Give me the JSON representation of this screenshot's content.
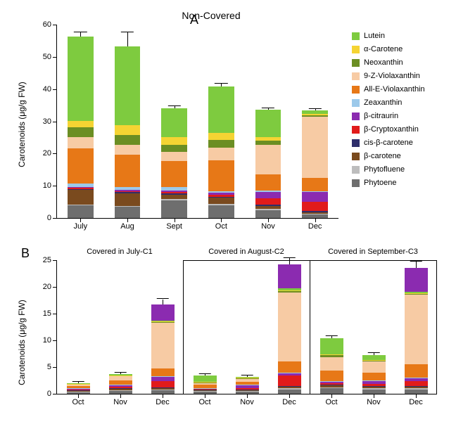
{
  "colors": {
    "Lutein": "#7ecb3f",
    "aCarotene": "#f5d433",
    "Neoxanthin": "#6b8e23",
    "9ZViolaxanthin": "#f7cba4",
    "AllEViolaxanthin": "#e77817",
    "Zeaxanthin": "#9cc9ea",
    "bCitraurin": "#8b2bb0",
    "bCryptoxanthin": "#e11b1b",
    "cisBetaCarotene": "#2e2e6b",
    "betaCarotene": "#7a4a1e",
    "Phytofluene": "#bdbdbd",
    "Phytoene": "#6e6e6e"
  },
  "legend": [
    {
      "key": "Lutein",
      "label": "Lutein"
    },
    {
      "key": "aCarotene",
      "label": "α-Carotene"
    },
    {
      "key": "Neoxanthin",
      "label": "Neoxanthin"
    },
    {
      "key": "9ZViolaxanthin",
      "label": "9-Z-Violaxanthin"
    },
    {
      "key": "AllEViolaxanthin",
      "label": "All-E-Violaxanthin"
    },
    {
      "key": "Zeaxanthin",
      "label": "Zeaxanthin"
    },
    {
      "key": "bCitraurin",
      "label": "β-citraurin"
    },
    {
      "key": "bCryptoxanthin",
      "label": "β-Cryptoxanthin"
    },
    {
      "key": "cisBetaCarotene",
      "label": "cis-β-carotene"
    },
    {
      "key": "betaCarotene",
      "label": "β-carotene"
    },
    {
      "key": "Phytofluene",
      "label": "Phytofluene"
    },
    {
      "key": "Phytoene",
      "label": "Phytoene"
    }
  ],
  "panelA": {
    "label": "A",
    "title": "Non-Covered",
    "ylabel": "Carotenoids (μg/g FW)",
    "ylim": [
      0,
      60
    ],
    "yticks": [
      0,
      10,
      20,
      30,
      40,
      50,
      60
    ],
    "categories": [
      "July",
      "Aug",
      "Sept",
      "Oct",
      "Nov",
      "Dec"
    ],
    "barWidth": 0.55,
    "stackOrder": [
      "Phytoene",
      "Phytofluene",
      "betaCarotene",
      "cisBetaCarotene",
      "bCryptoxanthin",
      "bCitraurin",
      "Zeaxanthin",
      "AllEViolaxanthin",
      "9ZViolaxanthin",
      "Neoxanthin",
      "aCarotene",
      "Lutein"
    ],
    "data": [
      {
        "Phytoene": 4,
        "Phytofluene": 0.2,
        "betaCarotene": 4.5,
        "cisBetaCarotene": 0.3,
        "bCryptoxanthin": 0.4,
        "bCitraurin": 0.3,
        "Zeaxanthin": 1,
        "AllEViolaxanthin": 11,
        "9ZViolaxanthin": 3.5,
        "Neoxanthin": 3,
        "aCarotene": 2,
        "Lutein": 26,
        "err": 1.5
      },
      {
        "Phytoene": 3.5,
        "Phytofluene": 0.2,
        "betaCarotene": 4,
        "cisBetaCarotene": 0.3,
        "bCryptoxanthin": 0.4,
        "bCitraurin": 0.3,
        "Zeaxanthin": 1,
        "AllEViolaxanthin": 10,
        "9ZViolaxanthin": 3,
        "Neoxanthin": 3,
        "aCarotene": 3,
        "Lutein": 24.5,
        "err": 4.5
      },
      {
        "Phytoene": 5.5,
        "Phytofluene": 0.3,
        "betaCarotene": 1.5,
        "cisBetaCarotene": 0.3,
        "bCryptoxanthin": 0.5,
        "bCitraurin": 0.5,
        "Zeaxanthin": 1,
        "AllEViolaxanthin": 8,
        "9ZViolaxanthin": 3,
        "Neoxanthin": 2,
        "aCarotene": 2.5,
        "Lutein": 9,
        "err": 0.6
      },
      {
        "Phytoene": 4,
        "Phytofluene": 0.3,
        "betaCarotene": 2,
        "cisBetaCarotene": 0.3,
        "bCryptoxanthin": 0.7,
        "bCitraurin": 0.5,
        "Zeaxanthin": 0.5,
        "AllEViolaxanthin": 9.5,
        "9ZViolaxanthin": 4,
        "Neoxanthin": 2.5,
        "aCarotene": 2,
        "Lutein": 14.5,
        "err": 0.8
      },
      {
        "Phytoene": 2.5,
        "Phytofluene": 0.3,
        "betaCarotene": 1,
        "cisBetaCarotene": 0.3,
        "bCryptoxanthin": 2,
        "bCitraurin": 2,
        "Zeaxanthin": 0.5,
        "AllEViolaxanthin": 5,
        "9ZViolaxanthin": 9,
        "Neoxanthin": 1.5,
        "aCarotene": 1,
        "Lutein": 8.5,
        "err": 0.5
      },
      {
        "Phytoene": 1,
        "Phytofluene": 0.3,
        "betaCarotene": 0.5,
        "cisBetaCarotene": 0.3,
        "bCryptoxanthin": 3,
        "bCitraurin": 3,
        "Zeaxanthin": 0.3,
        "AllEViolaxanthin": 4,
        "9ZViolaxanthin": 19,
        "Neoxanthin": 0.5,
        "aCarotene": 0.4,
        "Lutein": 1,
        "err": 0.6
      }
    ]
  },
  "panelB": {
    "label": "B",
    "ylabel": "Carotenoids (μg/g FW)",
    "subTitles": [
      "Covered in July-C1",
      "Covered in August-C2",
      "Covered in September-C3"
    ],
    "ylim": [
      0,
      25
    ],
    "yticks": [
      0,
      5,
      10,
      15,
      20,
      25
    ],
    "categories": [
      "Oct",
      "Nov",
      "Dec"
    ],
    "barWidth": 0.55,
    "stackOrder": [
      "Phytoene",
      "Phytofluene",
      "betaCarotene",
      "cisBetaCarotene",
      "bCryptoxanthin",
      "bCitraurin",
      "Zeaxanthin",
      "AllEViolaxanthin",
      "9ZViolaxanthin",
      "Neoxanthin",
      "aCarotene",
      "Lutein"
    ],
    "subplots": [
      [
        {
          "Phytoene": 0.3,
          "Phytofluene": 0.1,
          "betaCarotene": 0.2,
          "cisBetaCarotene": 0.05,
          "bCryptoxanthin": 0.1,
          "bCitraurin": 0.2,
          "Zeaxanthin": 0.05,
          "AllEViolaxanthin": 0.4,
          "9ZViolaxanthin": 0.4,
          "Neoxanthin": 0.05,
          "aCarotene": 0.05,
          "Lutein": 0.1,
          "err": 0.3
        },
        {
          "Phytoene": 0.5,
          "Phytofluene": 0.1,
          "betaCarotene": 0.3,
          "cisBetaCarotene": 0.1,
          "bCryptoxanthin": 0.3,
          "bCitraurin": 0.3,
          "Zeaxanthin": 0.1,
          "AllEViolaxanthin": 0.8,
          "9ZViolaxanthin": 0.8,
          "Neoxanthin": 0.1,
          "aCarotene": 0.05,
          "Lutein": 0.2,
          "err": 0.3
        },
        {
          "Phytoene": 0.6,
          "Phytofluene": 0.2,
          "betaCarotene": 0.3,
          "cisBetaCarotene": 0.1,
          "bCryptoxanthin": 1.2,
          "bCitraurin": 0.8,
          "Zeaxanthin": 0.1,
          "AllEViolaxanthin": 1.5,
          "9ZViolaxanthin": 8.5,
          "Neoxanthin": 0.1,
          "aCarotene": 0.1,
          "Lutein": 0.2,
          "err": 1.0,
          "topCitraurin": 3
        }
      ],
      [
        {
          "Phytoene": 0.4,
          "Phytofluene": 0.1,
          "betaCarotene": 0.2,
          "cisBetaCarotene": 0.05,
          "bCryptoxanthin": 0.15,
          "bCitraurin": 0.15,
          "Zeaxanthin": 0.05,
          "AllEViolaxanthin": 0.6,
          "9ZViolaxanthin": 0.3,
          "Neoxanthin": 0.1,
          "aCarotene": 0.1,
          "Lutein": 1.2,
          "err": 0.3
        },
        {
          "Phytoene": 0.4,
          "Phytofluene": 0.1,
          "betaCarotene": 0.2,
          "cisBetaCarotene": 0.05,
          "bCryptoxanthin": 0.3,
          "bCitraurin": 0.6,
          "Zeaxanthin": 0.05,
          "AllEViolaxanthin": 0.6,
          "9ZViolaxanthin": 0.6,
          "Neoxanthin": 0.05,
          "aCarotene": 0.05,
          "Lutein": 0.15,
          "err": 0.3
        },
        {
          "Phytoene": 0.8,
          "Phytofluene": 0.2,
          "betaCarotene": 0.3,
          "cisBetaCarotene": 0.1,
          "bCryptoxanthin": 2,
          "bCitraurin": 0.5,
          "Zeaxanthin": 0.1,
          "AllEViolaxanthin": 2,
          "9ZViolaxanthin": 13,
          "Neoxanthin": 0.2,
          "aCarotene": 0.1,
          "Lutein": 0.4,
          "err": 1.2,
          "topCitraurin": 4.5
        }
      ],
      [
        {
          "Phytoene": 1,
          "Phytofluene": 0.2,
          "betaCarotene": 0.4,
          "cisBetaCarotene": 0.1,
          "bCryptoxanthin": 0.3,
          "bCitraurin": 0.3,
          "Zeaxanthin": 0.1,
          "AllEViolaxanthin": 2,
          "9ZViolaxanthin": 2.5,
          "Neoxanthin": 0.3,
          "aCarotene": 0.2,
          "Lutein": 3,
          "err": 0.4
        },
        {
          "Phytoene": 0.8,
          "Phytofluene": 0.2,
          "betaCarotene": 0.3,
          "cisBetaCarotene": 0.1,
          "bCryptoxanthin": 0.5,
          "bCitraurin": 0.5,
          "Zeaxanthin": 0.1,
          "AllEViolaxanthin": 1.5,
          "9ZViolaxanthin": 2,
          "Neoxanthin": 0.2,
          "aCarotene": 0.1,
          "Lutein": 1,
          "err": 0.3
        },
        {
          "Phytoene": 0.8,
          "Phytofluene": 0.2,
          "betaCarotene": 0.3,
          "cisBetaCarotene": 0.1,
          "bCryptoxanthin": 1,
          "bCitraurin": 0.5,
          "Zeaxanthin": 0.1,
          "AllEViolaxanthin": 2.5,
          "9ZViolaxanthin": 13,
          "Neoxanthin": 0.2,
          "aCarotene": 0.1,
          "Lutein": 0.3,
          "err": 1.2,
          "topCitraurin": 4.5
        }
      ]
    ]
  }
}
